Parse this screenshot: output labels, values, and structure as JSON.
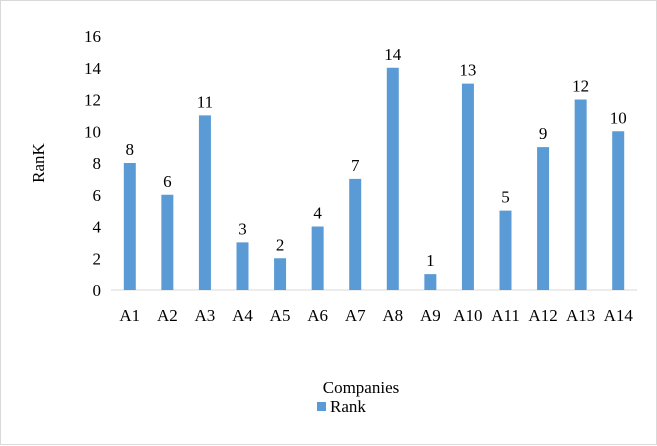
{
  "chart_data": {
    "type": "bar",
    "categories": [
      "A1",
      "A2",
      "A3",
      "A4",
      "A5",
      "A6",
      "A7",
      "A8",
      "A9",
      "A10",
      "A11",
      "A12",
      "A13",
      "A14"
    ],
    "series": [
      {
        "name": "Rank",
        "values": [
          8,
          6,
          11,
          3,
          2,
          4,
          7,
          14,
          1,
          13,
          5,
          9,
          12,
          10
        ],
        "color": "#5b9bd5"
      }
    ],
    "xlabel": "Companies",
    "ylabel": "RanK",
    "ylim": [
      0,
      16
    ],
    "yticks": [
      0,
      2,
      4,
      6,
      8,
      10,
      12,
      14,
      16
    ],
    "data_labels": true,
    "grid": false,
    "legend": "bottom"
  }
}
